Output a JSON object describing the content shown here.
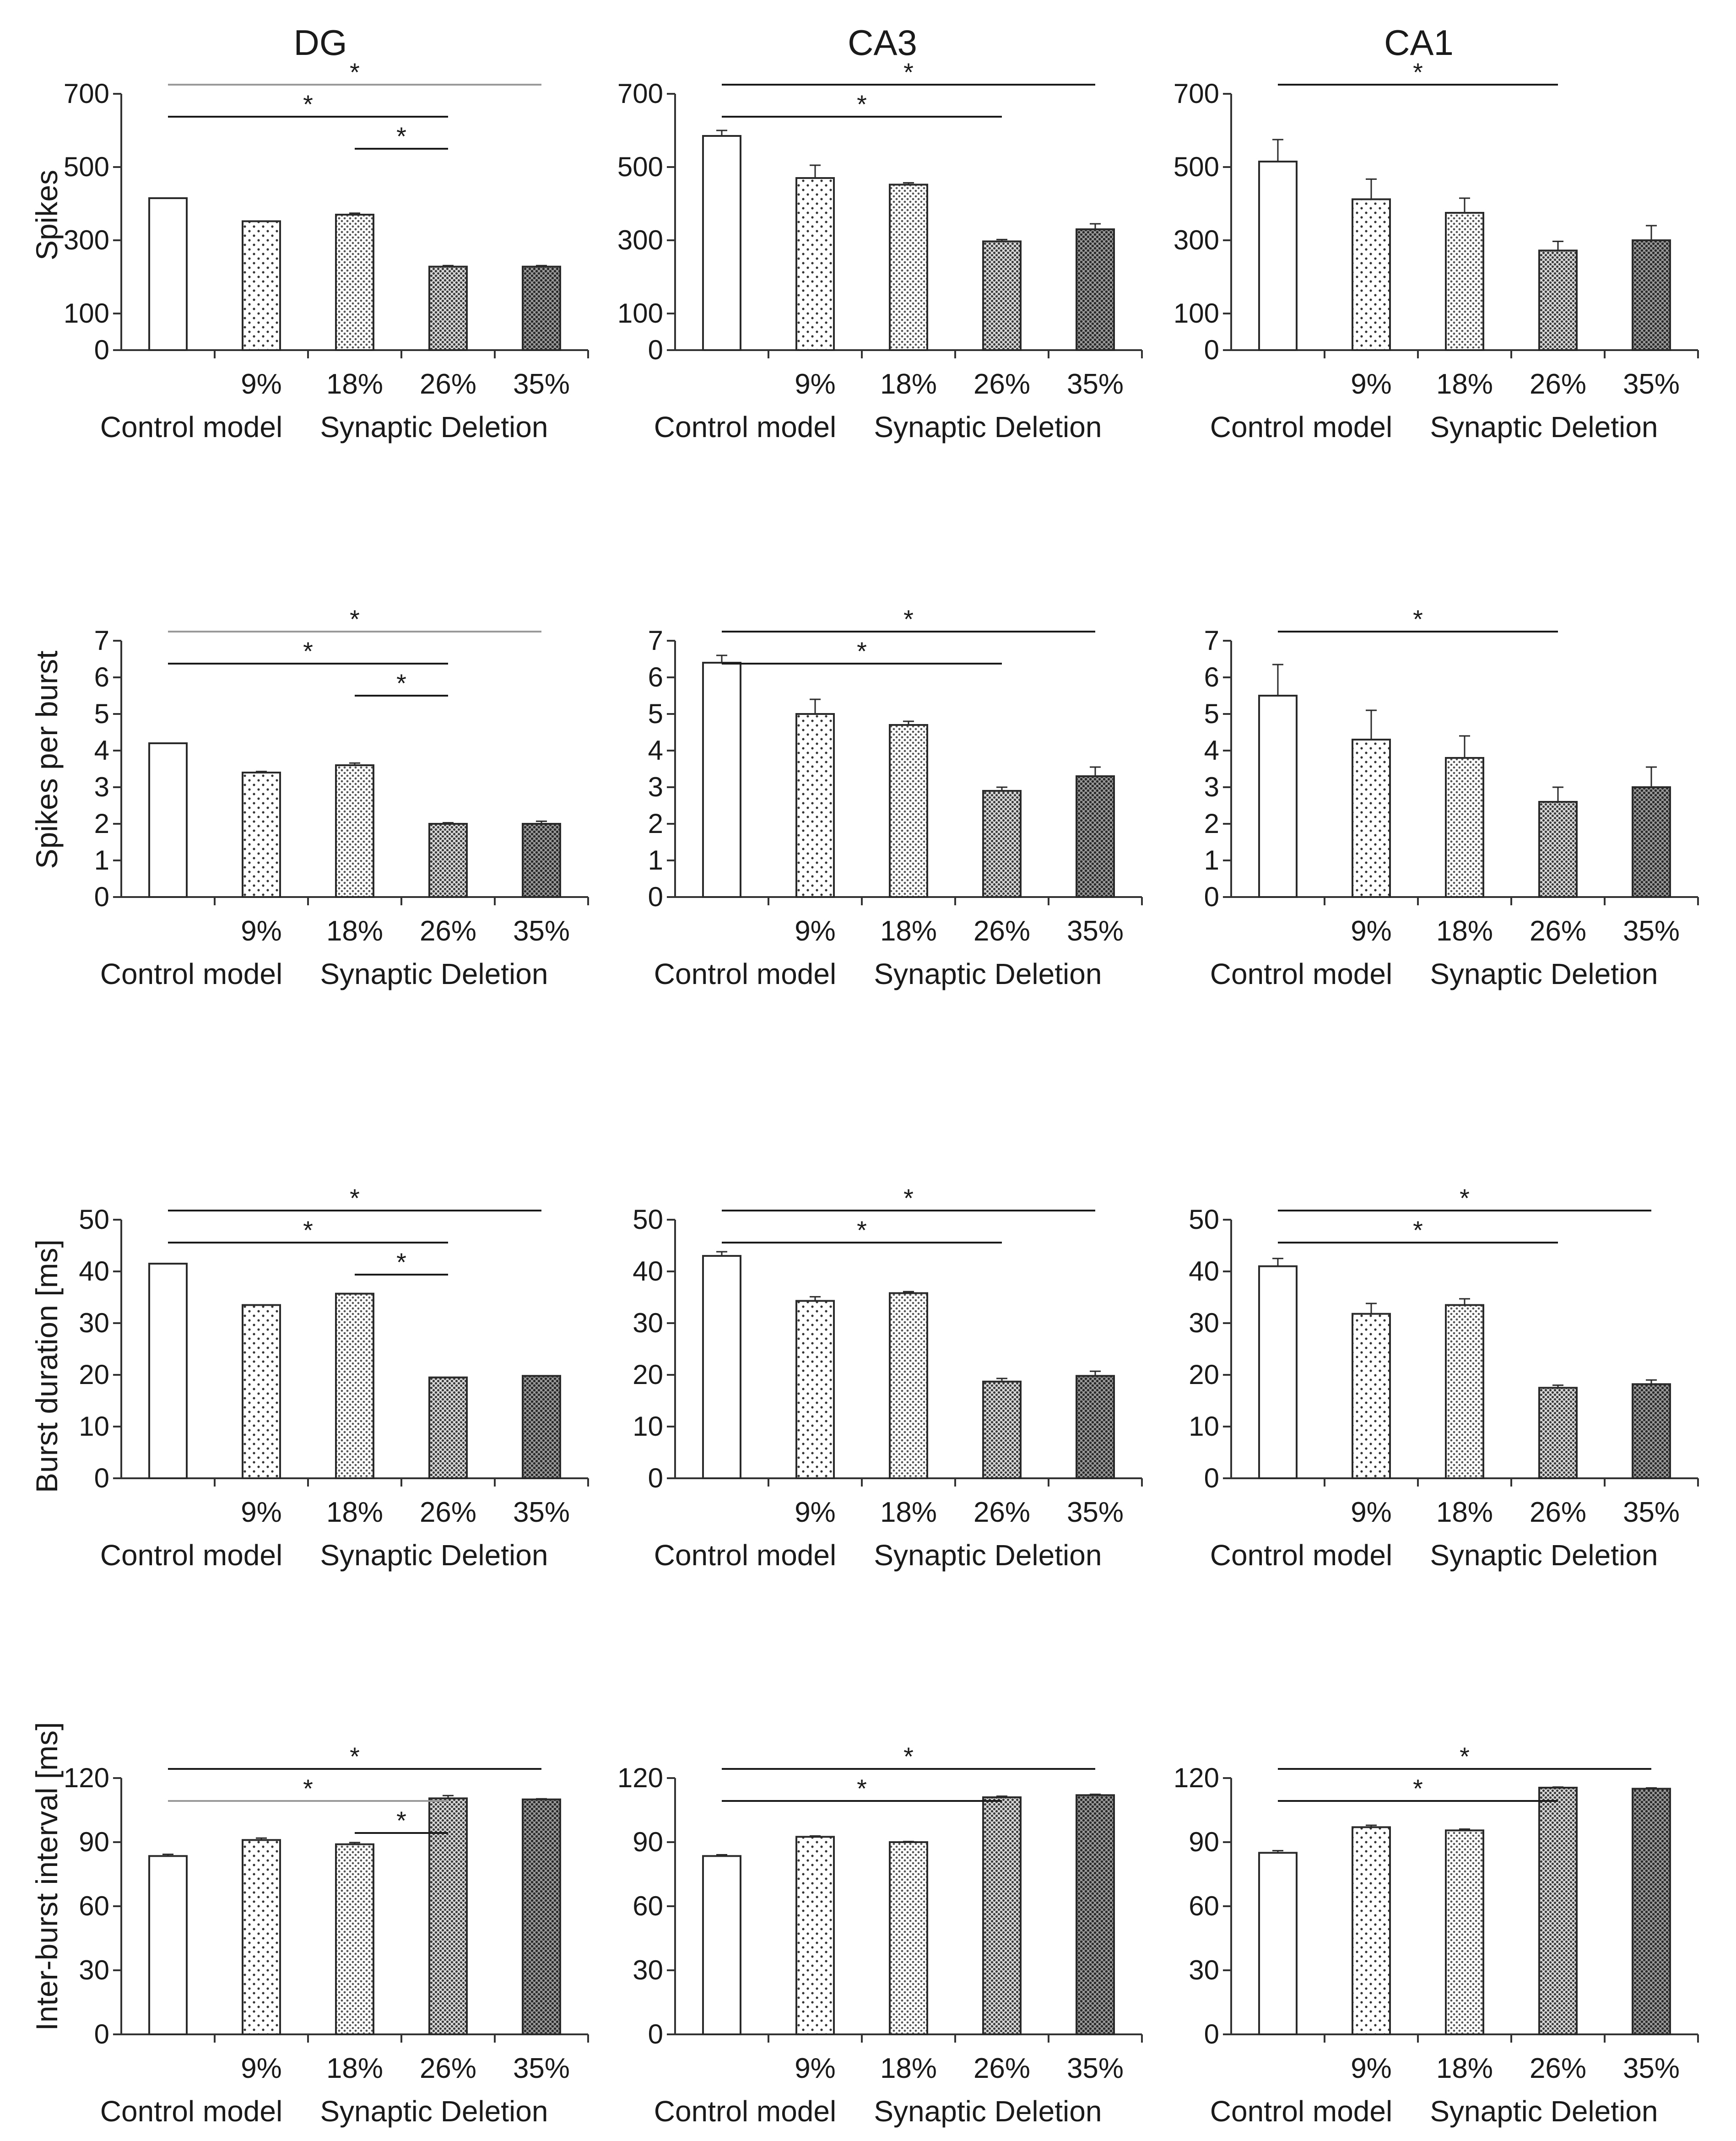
{
  "column_titles": [
    "DG",
    "CA3",
    "CA1"
  ],
  "row_labels": [
    "Spikes",
    "Spikes per burst",
    "Burst duration [ms]",
    "Inter-burst interval [ms]"
  ],
  "x_tick_labels": [
    "9%",
    "18%",
    "26%",
    "35%"
  ],
  "group_labels": [
    "Control model",
    "Synaptic Deletion"
  ],
  "significance_marker": "*",
  "colors": {
    "axis": "#333333",
    "bar_edge": "#2a2a2a",
    "black_bracket": "#1a1a1a",
    "grey_bracket": "#9a9a9a"
  },
  "bar_patterns": [
    "open",
    "sparse-dots",
    "fine-dots",
    "dense-dots",
    "dense-dots-dark"
  ],
  "chart_data": [
    {
      "type": "bar",
      "row": 0,
      "col": 0,
      "title": "DG",
      "ylabel": "Spikes",
      "ylim": [
        0,
        700
      ],
      "yticks": [
        0,
        100,
        300,
        500,
        700
      ],
      "categories": [
        "Control model",
        "9%",
        "18%",
        "26%",
        "35%"
      ],
      "values": [
        415,
        352,
        370,
        228,
        228
      ],
      "errors": [
        0,
        0,
        4,
        3,
        3
      ],
      "significance": [
        {
          "from": 0,
          "to": 4,
          "level": 1,
          "color": "grey"
        },
        {
          "from": 0,
          "to": 3,
          "level": 2,
          "color": "black"
        },
        {
          "from": 2,
          "to": 3,
          "level": 3,
          "color": "black"
        }
      ]
    },
    {
      "type": "bar",
      "row": 0,
      "col": 1,
      "title": "CA3",
      "ylabel": "Spikes",
      "ylim": [
        0,
        700
      ],
      "yticks": [
        0,
        100,
        300,
        500,
        700
      ],
      "categories": [
        "Control model",
        "9%",
        "18%",
        "26%",
        "35%"
      ],
      "values": [
        585,
        470,
        452,
        297,
        330
      ],
      "errors": [
        15,
        35,
        5,
        5,
        15
      ],
      "significance": [
        {
          "from": 0,
          "to": 4,
          "level": 1,
          "color": "black"
        },
        {
          "from": 0,
          "to": 3,
          "level": 2,
          "color": "black"
        }
      ]
    },
    {
      "type": "bar",
      "row": 0,
      "col": 2,
      "title": "CA1",
      "ylabel": "Spikes",
      "ylim": [
        0,
        700
      ],
      "yticks": [
        0,
        100,
        300,
        500,
        700
      ],
      "categories": [
        "Control model",
        "9%",
        "18%",
        "26%",
        "35%"
      ],
      "values": [
        515,
        412,
        375,
        272,
        300
      ],
      "errors": [
        60,
        55,
        40,
        25,
        40
      ],
      "significance": [
        {
          "from": 0,
          "to": 3,
          "level": 1,
          "color": "black"
        }
      ]
    },
    {
      "type": "bar",
      "row": 1,
      "col": 0,
      "title": "",
      "ylabel": "Spikes per burst",
      "ylim": [
        0,
        7
      ],
      "yticks": [
        0,
        1,
        2,
        3,
        4,
        5,
        6,
        7
      ],
      "categories": [
        "Control model",
        "9%",
        "18%",
        "26%",
        "35%"
      ],
      "values": [
        4.2,
        3.4,
        3.6,
        2.0,
        2.0
      ],
      "errors": [
        0,
        0.03,
        0.06,
        0.03,
        0.07
      ],
      "significance": [
        {
          "from": 0,
          "to": 4,
          "level": 1,
          "color": "grey"
        },
        {
          "from": 0,
          "to": 3,
          "level": 2,
          "color": "black"
        },
        {
          "from": 2,
          "to": 3,
          "level": 3,
          "color": "black"
        }
      ]
    },
    {
      "type": "bar",
      "row": 1,
      "col": 1,
      "title": "",
      "ylabel": "Spikes per burst",
      "ylim": [
        0,
        7
      ],
      "yticks": [
        0,
        1,
        2,
        3,
        4,
        5,
        6,
        7
      ],
      "categories": [
        "Control model",
        "9%",
        "18%",
        "26%",
        "35%"
      ],
      "values": [
        6.4,
        5.0,
        4.7,
        2.9,
        3.3
      ],
      "errors": [
        0.2,
        0.4,
        0.1,
        0.1,
        0.25
      ],
      "significance": [
        {
          "from": 0,
          "to": 4,
          "level": 1,
          "color": "black"
        },
        {
          "from": 0,
          "to": 3,
          "level": 2,
          "color": "black"
        }
      ]
    },
    {
      "type": "bar",
      "row": 1,
      "col": 2,
      "title": "",
      "ylabel": "Spikes per burst",
      "ylim": [
        0,
        7
      ],
      "yticks": [
        0,
        1,
        2,
        3,
        4,
        5,
        6,
        7
      ],
      "categories": [
        "Control model",
        "9%",
        "18%",
        "26%",
        "35%"
      ],
      "values": [
        5.5,
        4.3,
        3.8,
        2.6,
        3.0
      ],
      "errors": [
        0.85,
        0.8,
        0.6,
        0.4,
        0.55
      ],
      "significance": [
        {
          "from": 0,
          "to": 3,
          "level": 1,
          "color": "black"
        }
      ]
    },
    {
      "type": "bar",
      "row": 2,
      "col": 0,
      "title": "",
      "ylabel": "Burst duration [ms]",
      "ylim": [
        0,
        50
      ],
      "yticks": [
        0,
        10,
        20,
        30,
        40,
        50
      ],
      "categories": [
        "Control model",
        "9%",
        "18%",
        "26%",
        "35%"
      ],
      "values": [
        41.5,
        33.5,
        35.7,
        19.5,
        19.8
      ],
      "errors": [
        0,
        0,
        0,
        0,
        0
      ],
      "significance": [
        {
          "from": 0,
          "to": 4,
          "level": 1,
          "color": "black"
        },
        {
          "from": 0,
          "to": 3,
          "level": 2,
          "color": "black"
        },
        {
          "from": 2,
          "to": 3,
          "level": 3,
          "color": "black"
        }
      ]
    },
    {
      "type": "bar",
      "row": 2,
      "col": 1,
      "title": "",
      "ylabel": "Burst duration [ms]",
      "ylim": [
        0,
        50
      ],
      "yticks": [
        0,
        10,
        20,
        30,
        40,
        50
      ],
      "categories": [
        "Control model",
        "9%",
        "18%",
        "26%",
        "35%"
      ],
      "values": [
        43.0,
        34.3,
        35.8,
        18.7,
        19.8
      ],
      "errors": [
        0.8,
        0.8,
        0.3,
        0.6,
        0.9
      ],
      "significance": [
        {
          "from": 0,
          "to": 4,
          "level": 1,
          "color": "black"
        },
        {
          "from": 0,
          "to": 3,
          "level": 2,
          "color": "black"
        }
      ]
    },
    {
      "type": "bar",
      "row": 2,
      "col": 2,
      "title": "",
      "ylabel": "Burst duration [ms]",
      "ylim": [
        0,
        50
      ],
      "yticks": [
        0,
        10,
        20,
        30,
        40,
        50
      ],
      "categories": [
        "Control model",
        "9%",
        "18%",
        "26%",
        "35%"
      ],
      "values": [
        41.0,
        31.8,
        33.5,
        17.5,
        18.2
      ],
      "errors": [
        1.5,
        2.0,
        1.2,
        0.5,
        0.8
      ],
      "significance": [
        {
          "from": 0,
          "to": 4,
          "level": 1,
          "color": "black"
        },
        {
          "from": 0,
          "to": 3,
          "level": 2,
          "color": "black"
        }
      ]
    },
    {
      "type": "bar",
      "row": 3,
      "col": 0,
      "title": "",
      "ylabel": "Inter-burst interval [ms]",
      "ylim": [
        0,
        120
      ],
      "yticks": [
        0,
        30,
        60,
        90,
        120
      ],
      "categories": [
        "Control model",
        "9%",
        "18%",
        "26%",
        "35%"
      ],
      "values": [
        83.5,
        91,
        89,
        110.5,
        110
      ],
      "errors": [
        0.8,
        0.9,
        0.8,
        1.3,
        0.3
      ],
      "significance": [
        {
          "from": 0,
          "to": 4,
          "level": 1,
          "color": "black"
        },
        {
          "from": 0,
          "to": 3,
          "level": 2,
          "color": "grey"
        },
        {
          "from": 2,
          "to": 3,
          "level": 3,
          "color": "black"
        }
      ]
    },
    {
      "type": "bar",
      "row": 3,
      "col": 1,
      "title": "",
      "ylabel": "Inter-burst interval [ms]",
      "ylim": [
        0,
        120
      ],
      "yticks": [
        0,
        30,
        60,
        90,
        120
      ],
      "categories": [
        "Control model",
        "9%",
        "18%",
        "26%",
        "35%"
      ],
      "values": [
        83.5,
        92.5,
        90,
        111,
        112
      ],
      "errors": [
        0.6,
        0.4,
        0.3,
        0.5,
        0.4
      ],
      "significance": [
        {
          "from": 0,
          "to": 4,
          "level": 1,
          "color": "black"
        },
        {
          "from": 0,
          "to": 3,
          "level": 2,
          "color": "black"
        }
      ]
    },
    {
      "type": "bar",
      "row": 3,
      "col": 2,
      "title": "",
      "ylabel": "Inter-burst interval [ms]",
      "ylim": [
        0,
        120
      ],
      "yticks": [
        0,
        30,
        60,
        90,
        120
      ],
      "categories": [
        "Control model",
        "9%",
        "18%",
        "26%",
        "35%"
      ],
      "values": [
        85,
        97,
        95.5,
        115.5,
        115
      ],
      "errors": [
        1.0,
        0.9,
        0.6,
        0.3,
        0.4
      ],
      "significance": [
        {
          "from": 0,
          "to": 4,
          "level": 1,
          "color": "black"
        },
        {
          "from": 0,
          "to": 3,
          "level": 2,
          "color": "black"
        }
      ]
    }
  ]
}
